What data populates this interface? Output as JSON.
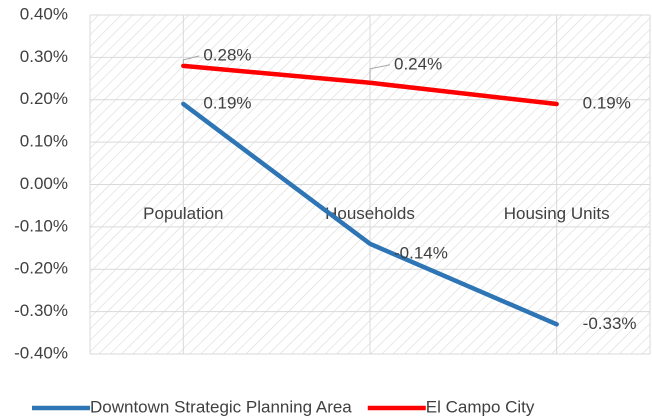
{
  "chart_data": {
    "type": "line",
    "categories": [
      "Population",
      "Households",
      "Housing Units"
    ],
    "series": [
      {
        "name": "Downtown Strategic Planning Area",
        "color": "#2e75b6",
        "values": [
          0.19,
          -0.14,
          -0.33
        ],
        "value_labels": [
          "0.19%",
          "-0.14%",
          "-0.33%"
        ]
      },
      {
        "name": "El Campo City",
        "color": "#ff0000",
        "values": [
          0.28,
          0.24,
          0.19
        ],
        "value_labels": [
          "0.28%",
          "0.24%",
          "0.19%"
        ]
      }
    ],
    "ylim": [
      -0.4,
      0.4
    ],
    "yticks": [
      {
        "value": -0.4,
        "label": "-0.40%"
      },
      {
        "value": -0.3,
        "label": "-0.30%"
      },
      {
        "value": -0.2,
        "label": "-0.20%"
      },
      {
        "value": -0.1,
        "label": "-0.10%"
      },
      {
        "value": 0,
        "label": "0.00%"
      },
      {
        "value": 0.1,
        "label": "0.10%"
      },
      {
        "value": 0.2,
        "label": "0.20%"
      },
      {
        "value": 0.3,
        "label": "0.30%"
      },
      {
        "value": 0.4,
        "label": "0.40%"
      }
    ],
    "grid": true,
    "legend": "bottom"
  }
}
